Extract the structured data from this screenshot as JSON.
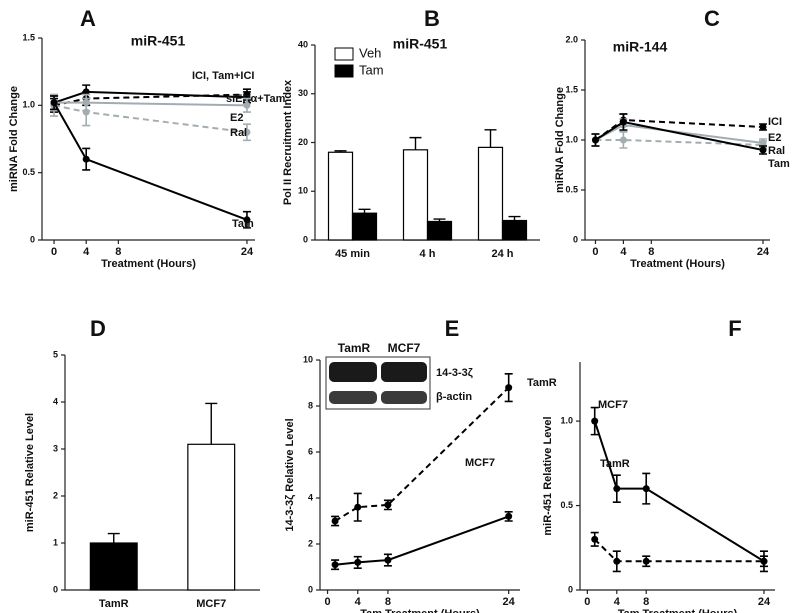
{
  "chart_data": [
    {
      "type": "line",
      "panel": "A",
      "title": "miR-451",
      "y_label": "miRNA Fold Change",
      "x_label": "Treatment (Hours)",
      "x": [
        0,
        4,
        24
      ],
      "xlim": [
        -1.5,
        25
      ],
      "xticks": [
        0,
        4,
        8,
        24
      ],
      "ylim": [
        0,
        1.5
      ],
      "yticks": [
        0,
        0.5,
        {
          "value": 1,
          "label": "1.0"
        },
        1.5
      ],
      "series": [
        {
          "name": "ICI, Tam+ICI",
          "color": "#000000",
          "dash": false,
          "values": [
            1.02,
            1.1,
            1.06
          ],
          "errors": [
            0.05,
            0.05,
            0.04
          ]
        },
        {
          "name": "siERα+Tam",
          "color": "#000000",
          "dash": true,
          "values": [
            1.0,
            1.05,
            1.08
          ],
          "errors": [
            0.05,
            0.05,
            0.04
          ]
        },
        {
          "name": "E2",
          "color": "#a3adb1",
          "dash": false,
          "values": [
            1.02,
            1.02,
            1.0
          ],
          "errors": [
            0.06,
            0.06,
            0.05
          ]
        },
        {
          "name": "Ral",
          "color": "#a3adb1",
          "dash": true,
          "values": [
            1.0,
            0.95,
            0.8
          ],
          "errors": [
            0.08,
            0.1,
            0.06
          ]
        },
        {
          "name": "Tam",
          "color": "#000000",
          "dash": false,
          "values": [
            1.02,
            0.6,
            0.15
          ],
          "errors": [
            0.05,
            0.08,
            0.06
          ]
        }
      ]
    },
    {
      "type": "bar",
      "panel": "B",
      "title": "miR-451",
      "y_label": "Pol II Recruitment Index",
      "categories": [
        "45 min",
        "4 h",
        "24 h"
      ],
      "ylim": [
        0,
        40
      ],
      "yticks": [
        0,
        10,
        20,
        30,
        40
      ],
      "series": [
        {
          "name": "Veh",
          "color": "#ffffff",
          "values": [
            18,
            18.5,
            19
          ],
          "errors": [
            0.3,
            2.5,
            3.6
          ]
        },
        {
          "name": "Tam",
          "color": "#000000",
          "values": [
            5.5,
            3.8,
            4.0
          ],
          "errors": [
            0.8,
            0.5,
            0.8
          ]
        }
      ]
    },
    {
      "type": "line",
      "panel": "C",
      "title": "miR-144",
      "y_label": "miRNA Fold Change",
      "x_label": "Treatment (Hours)",
      "x": [
        0,
        4,
        24
      ],
      "xlim": [
        -1.5,
        25
      ],
      "xticks": [
        0,
        4,
        8,
        24
      ],
      "ylim": [
        0,
        2
      ],
      "yticks": [
        0,
        0.5,
        {
          "value": 1,
          "label": "1.0"
        },
        1.5,
        {
          "value": 2,
          "label": "2.0"
        }
      ],
      "series": [
        {
          "name": "ICI",
          "color": "#000000",
          "dash": true,
          "values": [
            1.0,
            1.2,
            1.13
          ],
          "errors": [
            0.06,
            0.06,
            0.03
          ]
        },
        {
          "name": "E2",
          "color": "#a3adb1",
          "dash": false,
          "values": [
            1.0,
            1.15,
            0.97
          ],
          "errors": [
            0.06,
            0.06,
            0.04
          ]
        },
        {
          "name": "Ral",
          "color": "#a3adb1",
          "dash": true,
          "values": [
            1.0,
            1.0,
            0.95
          ],
          "errors": [
            0.06,
            0.08,
            0.04
          ]
        },
        {
          "name": "Tam",
          "color": "#000000",
          "dash": false,
          "values": [
            1.0,
            1.18,
            0.9
          ],
          "errors": [
            0.06,
            0.08,
            0.04
          ]
        }
      ]
    },
    {
      "type": "bar",
      "panel": "D",
      "y_label": "miR-451 Relative Level",
      "categories": [
        "TamR",
        "MCF7"
      ],
      "values": [
        1.0,
        3.1
      ],
      "errors": [
        0.2,
        0.87
      ],
      "colors": [
        "#000000",
        "#ffffff"
      ],
      "ylim": [
        0,
        5
      ],
      "yticks": [
        0,
        1,
        2,
        3,
        4,
        5
      ]
    },
    {
      "type": "line",
      "panel": "E",
      "y_label": "14-3-3ζ Relative Level",
      "x_label": "Tam Treatment (Hours)",
      "x": [
        1,
        4,
        8,
        24
      ],
      "xlim": [
        -1,
        25.5
      ],
      "xticks": [
        0,
        4,
        8,
        24
      ],
      "ylim": [
        0,
        10
      ],
      "yticks": [
        0,
        2,
        4,
        6,
        8,
        10
      ],
      "inset": {
        "lanes": [
          "TamR",
          "MCF7"
        ],
        "rows": [
          "14-3-3ζ",
          "β-actin"
        ]
      },
      "series": [
        {
          "name": "TamR",
          "color": "#000000",
          "dash": true,
          "values": [
            3.0,
            3.6,
            3.7,
            8.8
          ],
          "errors": [
            0.2,
            0.6,
            0.2,
            0.6
          ]
        },
        {
          "name": "MCF7",
          "color": "#000000",
          "dash": false,
          "values": [
            1.1,
            1.2,
            1.3,
            3.2
          ],
          "errors": [
            0.2,
            0.25,
            0.25,
            0.2
          ]
        }
      ]
    },
    {
      "type": "line",
      "panel": "F",
      "y_label": "miR-451 Relative Level",
      "x_label": "Tam Treatment (Hours)",
      "x": [
        1,
        4,
        8,
        24
      ],
      "xlim": [
        -1,
        25.5
      ],
      "xticks": [
        0,
        4,
        8,
        24
      ],
      "ylim": [
        0,
        1.35
      ],
      "yticks": [
        0,
        0.5,
        {
          "value": 1,
          "label": "1.0"
        }
      ],
      "series": [
        {
          "name": "MCF7",
          "color": "#000000",
          "dash": false,
          "values": [
            1.0,
            0.6,
            0.6,
            0.17
          ],
          "errors": [
            0.08,
            0.08,
            0.09,
            0.06
          ]
        },
        {
          "name": "TamR",
          "color": "#000000",
          "dash": true,
          "values": [
            0.3,
            0.17,
            0.17,
            0.17
          ],
          "errors": [
            0.04,
            0.06,
            0.03,
            0.03
          ]
        }
      ]
    }
  ]
}
